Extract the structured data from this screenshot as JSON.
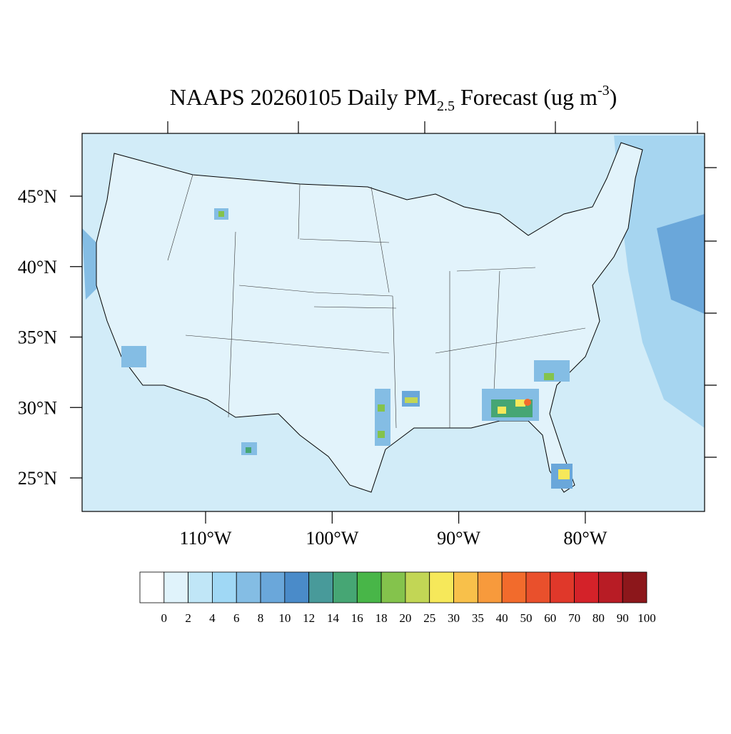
{
  "title": {
    "main": "NAAPS 20260105 Daily PM",
    "subscript": "2.5",
    "middle": " Forecast (ug m",
    "superscript": "-3",
    "end": ")"
  },
  "lat_ticks": [
    {
      "value": 45,
      "label": "45°N"
    },
    {
      "value": 40,
      "label": "40°N"
    },
    {
      "value": 35,
      "label": "35°N"
    },
    {
      "value": 30,
      "label": "30°N"
    },
    {
      "value": 25,
      "label": "25°N"
    }
  ],
  "lon_ticks": [
    {
      "value": -110,
      "label": "110°W"
    },
    {
      "value": -100,
      "label": "100°W"
    },
    {
      "value": -90,
      "label": "90°W"
    },
    {
      "value": -80,
      "label": "80°W"
    }
  ],
  "colorbar": {
    "levels": [
      0,
      2,
      4,
      6,
      8,
      10,
      12,
      14,
      16,
      18,
      20,
      25,
      30,
      35,
      40,
      50,
      60,
      70,
      80,
      90,
      100
    ],
    "colors": [
      "#ffffff",
      "#e0f3fb",
      "#c0e6f7",
      "#a0d8f5",
      "#84bde4",
      "#6aa7da",
      "#4a8bc9",
      "#489a9a",
      "#46a674",
      "#48b648",
      "#84c34c",
      "#c2d655",
      "#f6e85a",
      "#f8c04a",
      "#f79a3c",
      "#f26b2c",
      "#e9502c",
      "#e0382a",
      "#d42229",
      "#b81c25",
      "#8c171b"
    ]
  }
}
